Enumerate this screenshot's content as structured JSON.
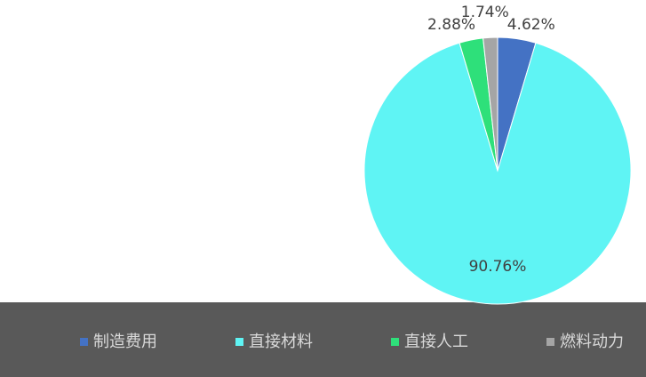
{
  "chart_data": {
    "type": "pie",
    "categories": [
      "制造费用",
      "直接材料",
      "直接人工",
      "燃料动力"
    ],
    "values": [
      4.62,
      90.76,
      2.88,
      1.74
    ],
    "value_labels": [
      "4.62%",
      "90.76%",
      "2.88%",
      "1.74%"
    ],
    "colors": [
      "#4472c4",
      "#5ff4f4",
      "#2ee07a",
      "#a5a5a5"
    ],
    "legend": "bottom"
  }
}
